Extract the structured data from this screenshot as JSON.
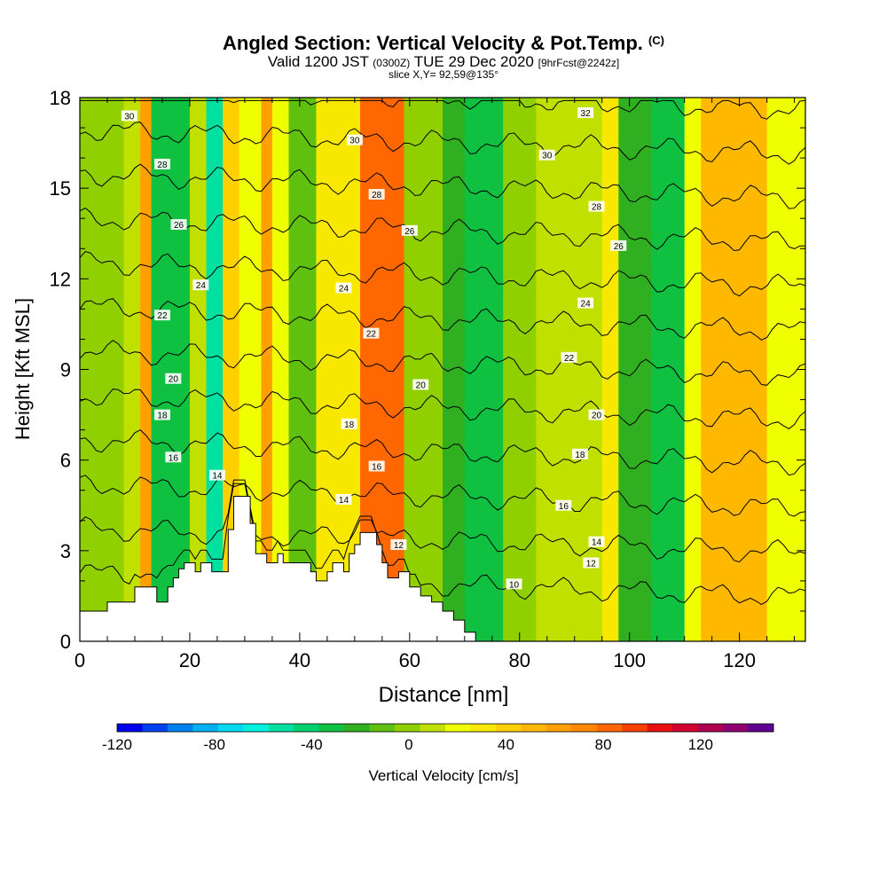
{
  "header": {
    "title_main": "Angled Section: Vertical Velocity & Pot.Temp.",
    "title_tag": "(C)",
    "valid_prefix": "Valid 1200 JST",
    "valid_utc": "(0300Z)",
    "valid_date": "TUE 29 Dec 2020",
    "forecast": "[9hrFcst@2242z]",
    "slice": "slice X,Y= 92,59@135°"
  },
  "chart_data": {
    "type": "heatmap",
    "xlabel": "Distance [nm]",
    "ylabel": "Height [Kft MSL]",
    "xlim": [
      0,
      132
    ],
    "ylim": [
      0,
      18
    ],
    "x_ticks": [
      0,
      20,
      40,
      60,
      80,
      100,
      120
    ],
    "y_ticks": [
      0,
      3,
      6,
      9,
      12,
      15,
      18
    ],
    "colorbar": {
      "label": "Vertical Velocity [cm/s]",
      "range": [
        -120,
        150
      ],
      "step": 10,
      "tick_values": [
        -120,
        -80,
        -40,
        0,
        40,
        80,
        120
      ],
      "tick_labels": [
        "-120",
        "-80",
        "-40",
        "0",
        "40",
        "80",
        "120"
      ],
      "colors": [
        "#0000f0",
        "#0040f0",
        "#0080f0",
        "#00b0f0",
        "#00d8f0",
        "#00f0e0",
        "#00e0a0",
        "#00d070",
        "#10c040",
        "#30b020",
        "#60c010",
        "#90d000",
        "#c0e000",
        "#f0ff00",
        "#f8e800",
        "#ffd000",
        "#ffb800",
        "#ffa000",
        "#ff8800",
        "#ff6800",
        "#f84000",
        "#e81010",
        "#d00030",
        "#b00050",
        "#900070",
        "#600090"
      ]
    },
    "terrain_profile": [
      [
        0,
        1
      ],
      [
        5,
        1
      ],
      [
        5,
        1.3
      ],
      [
        10,
        1.3
      ],
      [
        10,
        1.8
      ],
      [
        14,
        1.8
      ],
      [
        14,
        1.3
      ],
      [
        16,
        1.3
      ],
      [
        16,
        1.8
      ],
      [
        17,
        1.8
      ],
      [
        17,
        2.1
      ],
      [
        18,
        2.1
      ],
      [
        18,
        2.4
      ],
      [
        19,
        2.4
      ],
      [
        19,
        2.6
      ],
      [
        21,
        2.6
      ],
      [
        21,
        2.3
      ],
      [
        22,
        2.3
      ],
      [
        22,
        2.6
      ],
      [
        24,
        2.6
      ],
      [
        24,
        2.3
      ],
      [
        27,
        2.3
      ],
      [
        27,
        3.7
      ],
      [
        28,
        3.7
      ],
      [
        28,
        4.8
      ],
      [
        31,
        4.8
      ],
      [
        31,
        3.9
      ],
      [
        32,
        3.9
      ],
      [
        32,
        2.9
      ],
      [
        34,
        2.9
      ],
      [
        34,
        2.6
      ],
      [
        35,
        2.6
      ],
      [
        35,
        2.6
      ],
      [
        36,
        2.6
      ],
      [
        36,
        2.9
      ],
      [
        37,
        2.9
      ],
      [
        37,
        2.6
      ],
      [
        38,
        2.6
      ],
      [
        38,
        2.6
      ],
      [
        42,
        2.6
      ],
      [
        42,
        2.3
      ],
      [
        43,
        2.3
      ],
      [
        43,
        2.0
      ],
      [
        45,
        2.0
      ],
      [
        45,
        2.3
      ],
      [
        46,
        2.3
      ],
      [
        46,
        2.6
      ],
      [
        48,
        2.6
      ],
      [
        48,
        2.3
      ],
      [
        49,
        2.3
      ],
      [
        49,
        2.9
      ],
      [
        50,
        2.9
      ],
      [
        50,
        3.2
      ],
      [
        51,
        3.2
      ],
      [
        51,
        3.6
      ],
      [
        54,
        3.6
      ],
      [
        54,
        3.2
      ],
      [
        55,
        3.2
      ],
      [
        55,
        2.6
      ],
      [
        56,
        2.6
      ],
      [
        56,
        2.1
      ],
      [
        58,
        2.1
      ],
      [
        58,
        2.3
      ],
      [
        60,
        2.3
      ],
      [
        60,
        1.8
      ],
      [
        62,
        1.8
      ],
      [
        62,
        1.5
      ],
      [
        64,
        1.5
      ],
      [
        64,
        1.3
      ],
      [
        66,
        1.3
      ],
      [
        66,
        1.0
      ],
      [
        68,
        1.0
      ],
      [
        68,
        0.7
      ],
      [
        70,
        0.7
      ],
      [
        70,
        0.3
      ],
      [
        72,
        0.3
      ],
      [
        72,
        0
      ],
      [
        132,
        0
      ]
    ],
    "columns": [
      {
        "x": [
          0,
          8
        ],
        "w": -5
      },
      {
        "x": [
          8,
          11
        ],
        "w": 4
      },
      {
        "x": [
          11,
          13
        ],
        "w": 50
      },
      {
        "x": [
          13,
          20
        ],
        "w": -35
      },
      {
        "x": [
          20,
          23
        ],
        "w": 8
      },
      {
        "x": [
          23,
          26
        ],
        "w": -60
      },
      {
        "x": [
          26,
          29
        ],
        "w": 35
      },
      {
        "x": [
          29,
          33
        ],
        "w": 12
      },
      {
        "x": [
          33,
          35
        ],
        "w": 50
      },
      {
        "x": [
          35,
          38
        ],
        "w": 10
      },
      {
        "x": [
          38,
          43
        ],
        "w": -12
      },
      {
        "x": [
          43,
          51
        ],
        "w": 22
      },
      {
        "x": [
          51,
          59
        ],
        "w": 75
      },
      {
        "x": [
          59,
          66
        ],
        "w": -8
      },
      {
        "x": [
          66,
          70
        ],
        "w": -22
      },
      {
        "x": [
          70,
          77
        ],
        "w": -38
      },
      {
        "x": [
          77,
          83
        ],
        "w": -8
      },
      {
        "x": [
          83,
          95
        ],
        "w": 5
      },
      {
        "x": [
          95,
          98
        ],
        "w": 22
      },
      {
        "x": [
          98,
          104
        ],
        "w": -25
      },
      {
        "x": [
          104,
          110
        ],
        "w": -35
      },
      {
        "x": [
          110,
          113
        ],
        "w": 12
      },
      {
        "x": [
          113,
          125
        ],
        "w": 40
      },
      {
        "x": [
          125,
          132
        ],
        "w": 12
      }
    ],
    "theta_levels": [
      10,
      12,
      14,
      16,
      18,
      20,
      22,
      24,
      26,
      28,
      30,
      32
    ],
    "contour_labels": [
      {
        "text": "30",
        "x": 9,
        "y": 17.4
      },
      {
        "text": "28",
        "x": 15,
        "y": 15.8
      },
      {
        "text": "26",
        "x": 18,
        "y": 13.8
      },
      {
        "text": "24",
        "x": 22,
        "y": 11.8
      },
      {
        "text": "22",
        "x": 15,
        "y": 10.8
      },
      {
        "text": "20",
        "x": 17,
        "y": 8.7
      },
      {
        "text": "18",
        "x": 15,
        "y": 7.5
      },
      {
        "text": "16",
        "x": 17,
        "y": 6.1
      },
      {
        "text": "14",
        "x": 25,
        "y": 5.5
      },
      {
        "text": "30",
        "x": 50,
        "y": 16.6
      },
      {
        "text": "28",
        "x": 54,
        "y": 14.8
      },
      {
        "text": "26",
        "x": 60,
        "y": 13.6
      },
      {
        "text": "24",
        "x": 48,
        "y": 11.7
      },
      {
        "text": "22",
        "x": 53,
        "y": 10.2
      },
      {
        "text": "20",
        "x": 62,
        "y": 8.5
      },
      {
        "text": "18",
        "x": 49,
        "y": 7.2
      },
      {
        "text": "16",
        "x": 54,
        "y": 5.8
      },
      {
        "text": "14",
        "x": 48,
        "y": 4.7
      },
      {
        "text": "12",
        "x": 58,
        "y": 3.2
      },
      {
        "text": "32",
        "x": 92,
        "y": 17.5
      },
      {
        "text": "30",
        "x": 85,
        "y": 16.1
      },
      {
        "text": "28",
        "x": 94,
        "y": 14.4
      },
      {
        "text": "26",
        "x": 98,
        "y": 13.1
      },
      {
        "text": "24",
        "x": 92,
        "y": 11.2
      },
      {
        "text": "22",
        "x": 89,
        "y": 9.4
      },
      {
        "text": "20",
        "x": 94,
        "y": 7.5
      },
      {
        "text": "18",
        "x": 91,
        "y": 6.2
      },
      {
        "text": "16",
        "x": 88,
        "y": 4.5
      },
      {
        "text": "14",
        "x": 94,
        "y": 3.3
      },
      {
        "text": "12",
        "x": 93,
        "y": 2.6
      },
      {
        "text": "10",
        "x": 79,
        "y": 1.9
      }
    ]
  }
}
